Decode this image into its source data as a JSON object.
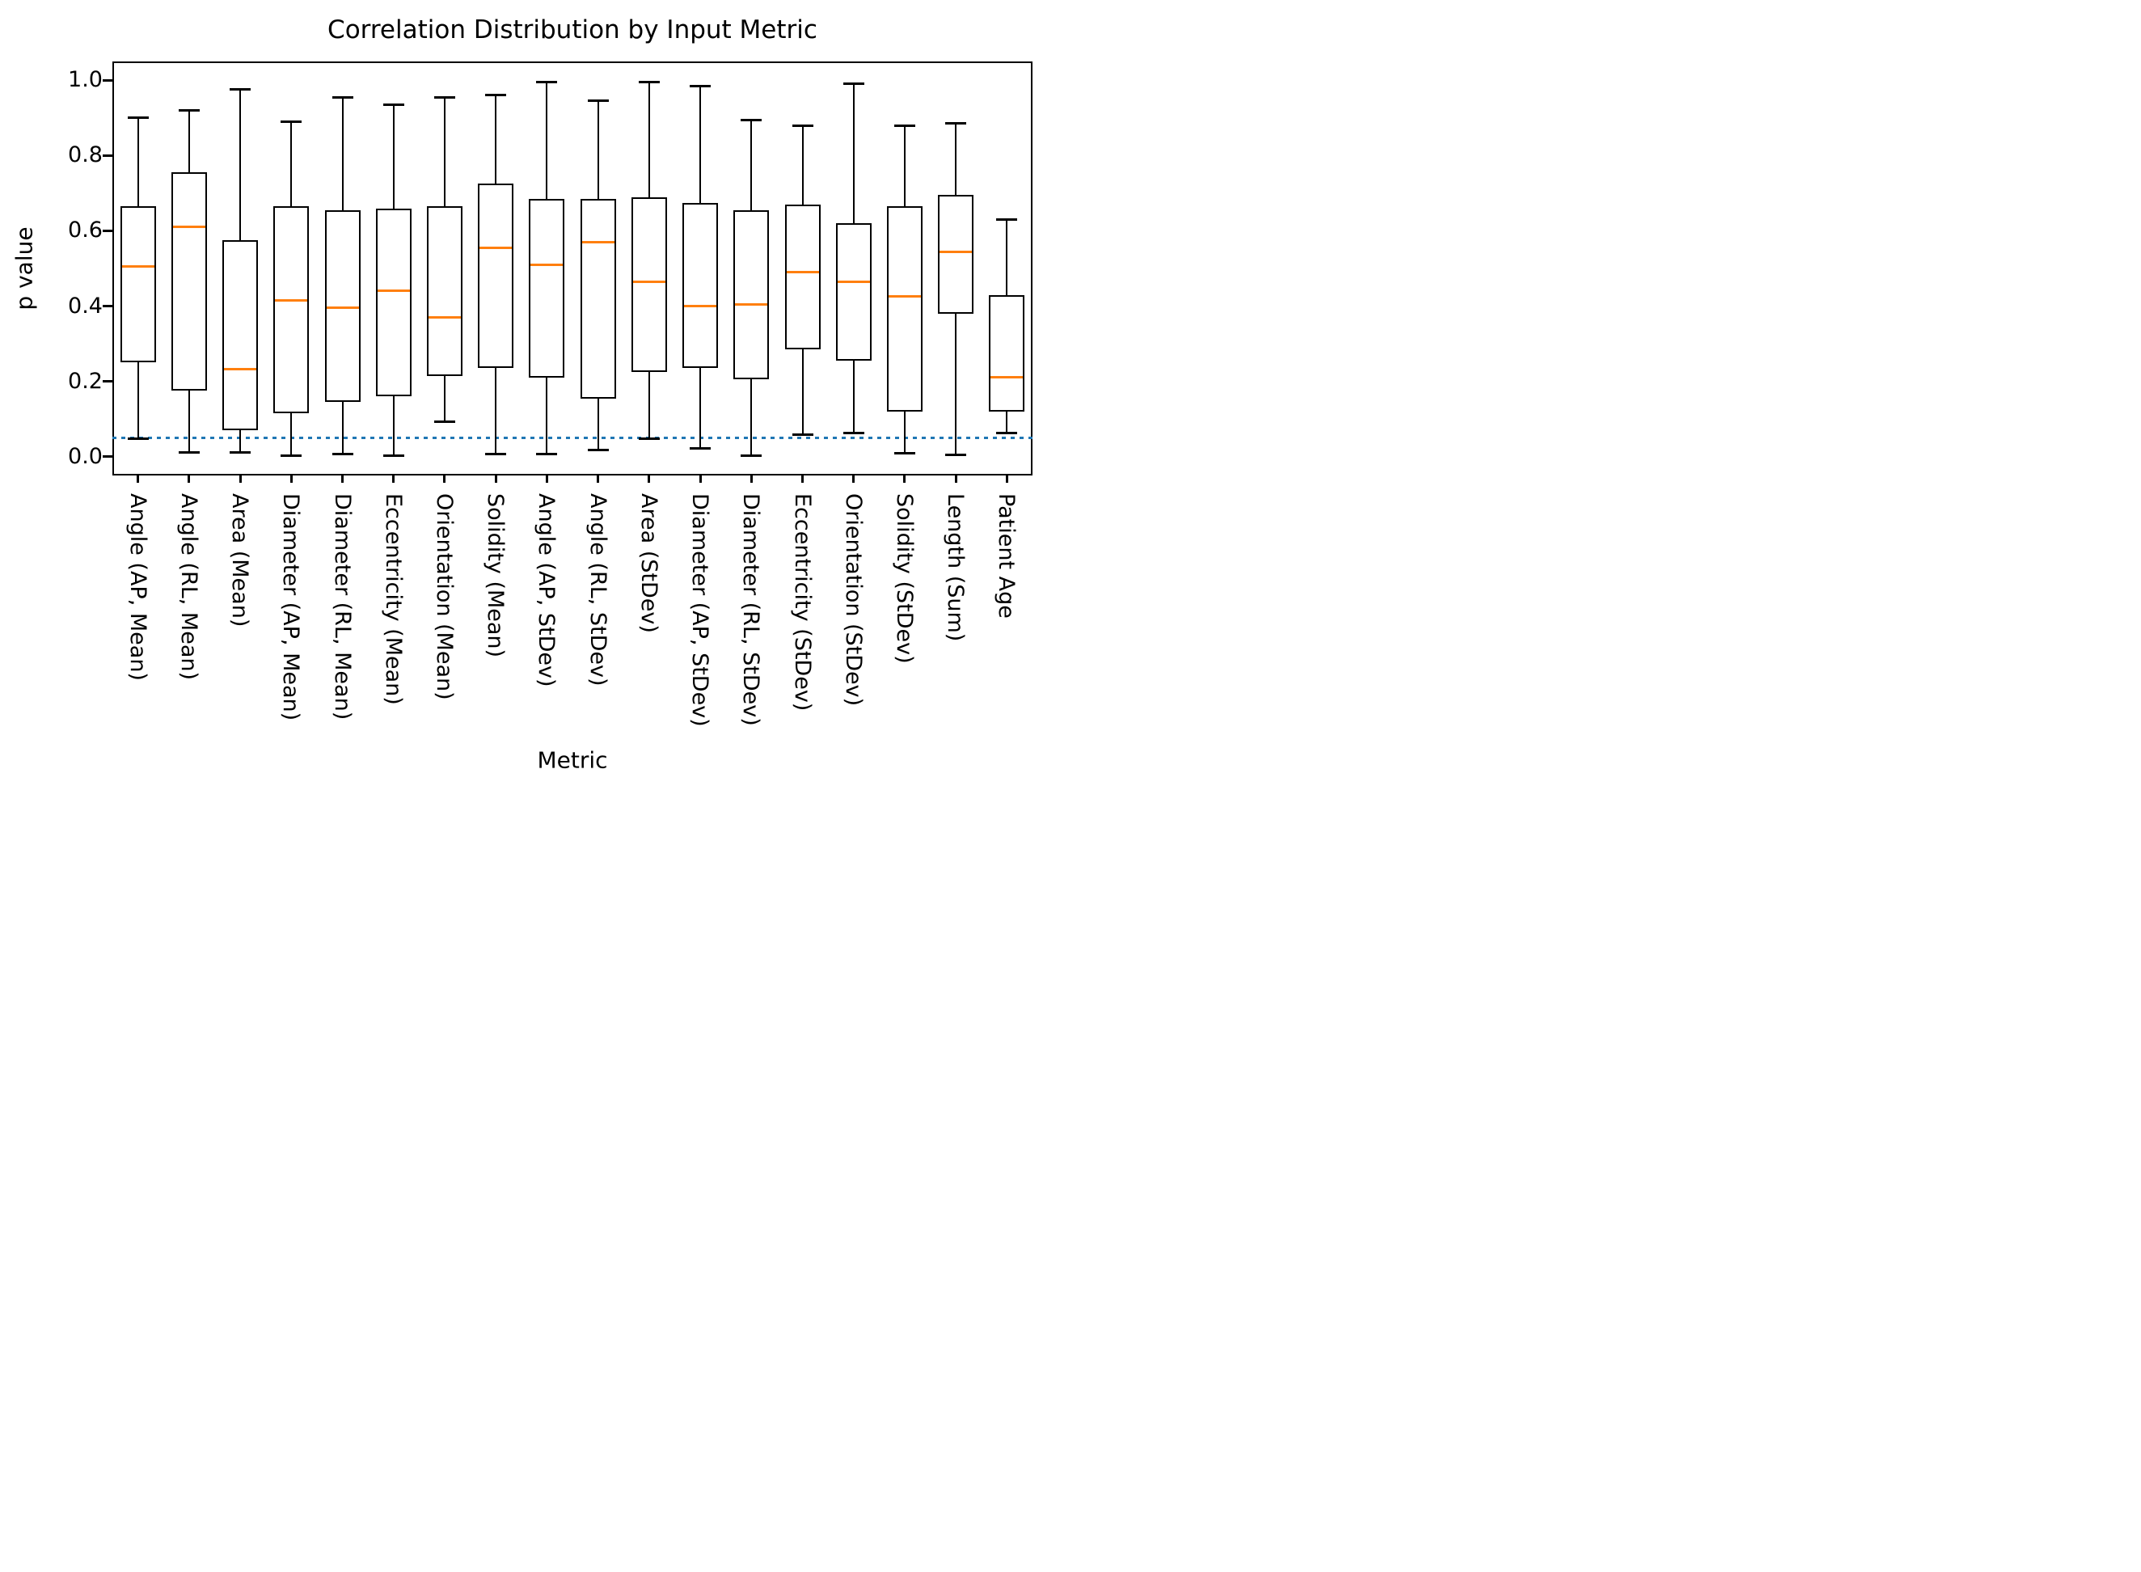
{
  "chart_data": {
    "type": "boxplot",
    "title": "Correlation Distribution by Input Metric",
    "xlabel": "Metric",
    "ylabel": "p value",
    "ylim": [
      -0.05,
      1.05
    ],
    "yticks": [
      0.0,
      0.2,
      0.4,
      0.6,
      0.8,
      1.0
    ],
    "ytick_labels": [
      "0.0",
      "0.2",
      "0.4",
      "0.6",
      "0.8",
      "1.0"
    ],
    "grid": false,
    "legend": "none",
    "significance_line": {
      "value": 0.05,
      "color": "#1f77b4",
      "style": "dotted"
    },
    "colors": {
      "box_edge": "#000000",
      "median": "#ff7f0e",
      "background": "#ffffff",
      "text": "#000000"
    },
    "categories": [
      "Angle (AP, Mean)",
      "Angle (RL, Mean)",
      "Area (Mean)",
      "Diameter (AP, Mean)",
      "Diameter (RL, Mean)",
      "Eccentricity (Mean)",
      "Orientation (Mean)",
      "Solidity (Mean)",
      "Angle (AP, StDev)",
      "Angle (RL, StDev)",
      "Area (StDev)",
      "Diameter (AP, StDev)",
      "Diameter (RL, StDev)",
      "Eccentricity (StDev)",
      "Orientation (StDev)",
      "Solidity (StDev)",
      "Length (Sum)",
      "Patient Age"
    ],
    "series": [
      {
        "label": "Angle (AP, Mean)",
        "min": 0.048,
        "q1": 0.25,
        "median": 0.505,
        "q3": 0.665,
        "max": 0.9
      },
      {
        "label": "Angle (RL, Mean)",
        "min": 0.012,
        "q1": 0.175,
        "median": 0.61,
        "q3": 0.755,
        "max": 0.92
      },
      {
        "label": "Area (Mean)",
        "min": 0.012,
        "q1": 0.07,
        "median": 0.232,
        "q3": 0.575,
        "max": 0.975
      },
      {
        "label": "Diameter (AP, Mean)",
        "min": 0.002,
        "q1": 0.115,
        "median": 0.415,
        "q3": 0.665,
        "max": 0.89
      },
      {
        "label": "Diameter (RL, Mean)",
        "min": 0.008,
        "q1": 0.145,
        "median": 0.395,
        "q3": 0.655,
        "max": 0.955
      },
      {
        "label": "Eccentricity (Mean)",
        "min": 0.002,
        "q1": 0.16,
        "median": 0.44,
        "q3": 0.66,
        "max": 0.935
      },
      {
        "label": "Orientation (Mean)",
        "min": 0.093,
        "q1": 0.215,
        "median": 0.37,
        "q3": 0.665,
        "max": 0.955
      },
      {
        "label": "Solidity (Mean)",
        "min": 0.008,
        "q1": 0.235,
        "median": 0.555,
        "q3": 0.725,
        "max": 0.96
      },
      {
        "label": "Angle (AP, StDev)",
        "min": 0.008,
        "q1": 0.21,
        "median": 0.51,
        "q3": 0.685,
        "max": 0.995
      },
      {
        "label": "Angle (RL, StDev)",
        "min": 0.018,
        "q1": 0.155,
        "median": 0.57,
        "q3": 0.685,
        "max": 0.945
      },
      {
        "label": "Area (StDev)",
        "min": 0.048,
        "q1": 0.225,
        "median": 0.465,
        "q3": 0.69,
        "max": 0.995
      },
      {
        "label": "Diameter (AP, StDev)",
        "min": 0.022,
        "q1": 0.235,
        "median": 0.4,
        "q3": 0.675,
        "max": 0.985
      },
      {
        "label": "Diameter (RL, StDev)",
        "min": 0.003,
        "q1": 0.205,
        "median": 0.405,
        "q3": 0.655,
        "max": 0.895
      },
      {
        "label": "Eccentricity (StDev)",
        "min": 0.058,
        "q1": 0.285,
        "median": 0.49,
        "q3": 0.67,
        "max": 0.88
      },
      {
        "label": "Orientation (StDev)",
        "min": 0.062,
        "q1": 0.255,
        "median": 0.465,
        "q3": 0.62,
        "max": 0.99
      },
      {
        "label": "Solidity (StDev)",
        "min": 0.01,
        "q1": 0.12,
        "median": 0.425,
        "q3": 0.665,
        "max": 0.88
      },
      {
        "label": "Length (Sum)",
        "min": 0.005,
        "q1": 0.38,
        "median": 0.545,
        "q3": 0.695,
        "max": 0.885
      },
      {
        "label": "Patient Age",
        "min": 0.062,
        "q1": 0.12,
        "median": 0.21,
        "q3": 0.43,
        "max": 0.63
      }
    ]
  }
}
